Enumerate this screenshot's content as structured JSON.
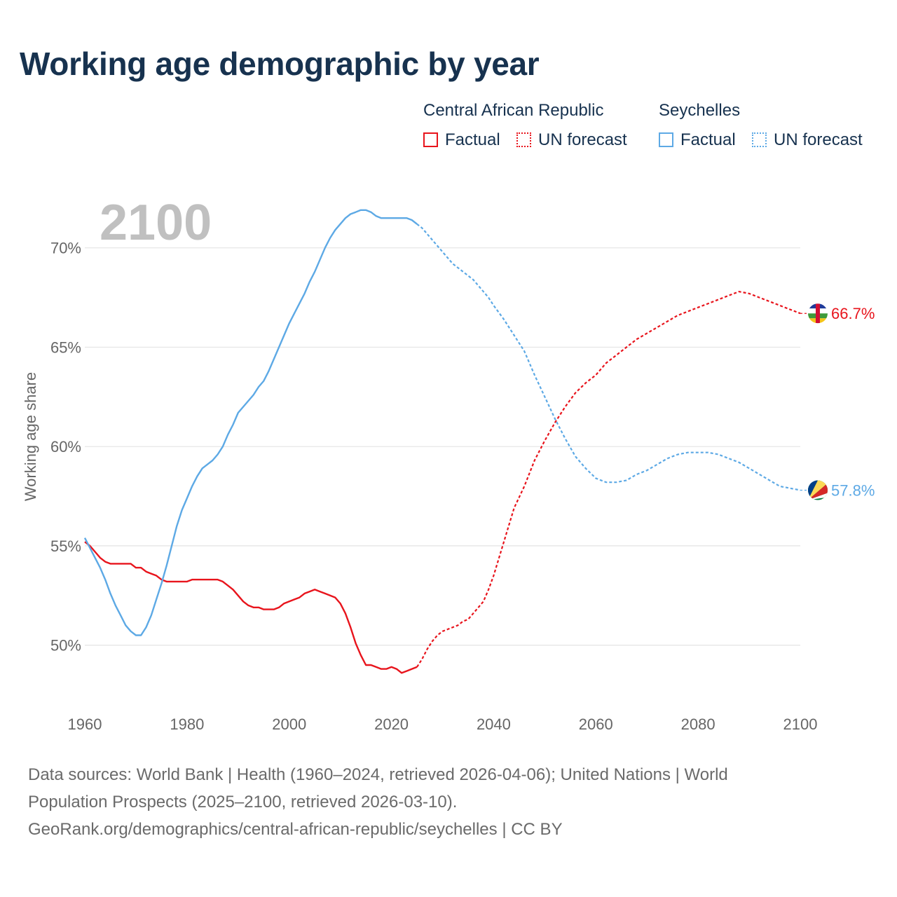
{
  "title": "Working age demographic by year",
  "legend": {
    "groups": [
      {
        "name": "Central African Republic",
        "factual": "Factual",
        "forecast": "UN forecast",
        "color": "#e8141c"
      },
      {
        "name": "Seychelles",
        "factual": "Factual",
        "forecast": "UN forecast",
        "color": "#5da9e5"
      }
    ]
  },
  "chart_data": {
    "type": "line",
    "title": "Working age demographic by year",
    "xlabel": "",
    "ylabel": "Working age share",
    "xlim": [
      1960,
      2100
    ],
    "ylim": [
      47.2,
      72.6
    ],
    "x_ticks": [
      1960,
      1980,
      2000,
      2020,
      2040,
      2060,
      2080,
      2100
    ],
    "y_ticks": [
      50,
      55,
      60,
      65,
      70
    ],
    "y_tick_labels": [
      "50%",
      "55%",
      "60%",
      "65%",
      "70%"
    ],
    "current_year": "2100",
    "forecast_start": 2025,
    "series": [
      {
        "name": "Central African Republic",
        "color": "#e8141c",
        "end_label": "66.7%",
        "flag": "central-african-republic-flag-icon",
        "x": [
          1960,
          1961,
          1962,
          1963,
          1964,
          1965,
          1966,
          1967,
          1968,
          1969,
          1970,
          1971,
          1972,
          1973,
          1974,
          1975,
          1976,
          1977,
          1978,
          1979,
          1980,
          1981,
          1982,
          1983,
          1984,
          1985,
          1986,
          1987,
          1988,
          1989,
          1990,
          1991,
          1992,
          1993,
          1994,
          1995,
          1996,
          1997,
          1998,
          1999,
          2000,
          2001,
          2002,
          2003,
          2004,
          2005,
          2006,
          2007,
          2008,
          2009,
          2010,
          2011,
          2012,
          2013,
          2014,
          2015,
          2016,
          2017,
          2018,
          2019,
          2020,
          2021,
          2022,
          2023,
          2024,
          2025,
          2026,
          2027,
          2028,
          2029,
          2030,
          2031,
          2032,
          2033,
          2034,
          2035,
          2036,
          2037,
          2038,
          2039,
          2040,
          2042,
          2044,
          2046,
          2048,
          2050,
          2052,
          2054,
          2056,
          2058,
          2060,
          2062,
          2064,
          2066,
          2068,
          2070,
          2072,
          2074,
          2076,
          2078,
          2080,
          2082,
          2084,
          2086,
          2088,
          2090,
          2092,
          2094,
          2096,
          2098,
          2100
        ],
        "y": [
          55.2,
          55.0,
          54.7,
          54.4,
          54.2,
          54.1,
          54.1,
          54.1,
          54.1,
          54.1,
          53.9,
          53.9,
          53.7,
          53.6,
          53.5,
          53.3,
          53.2,
          53.2,
          53.2,
          53.2,
          53.2,
          53.3,
          53.3,
          53.3,
          53.3,
          53.3,
          53.3,
          53.2,
          53.0,
          52.8,
          52.5,
          52.2,
          52.0,
          51.9,
          51.9,
          51.8,
          51.8,
          51.8,
          51.9,
          52.1,
          52.2,
          52.3,
          52.4,
          52.6,
          52.7,
          52.8,
          52.7,
          52.6,
          52.5,
          52.4,
          52.1,
          51.6,
          50.9,
          50.1,
          49.5,
          49.0,
          49.0,
          48.9,
          48.8,
          48.8,
          48.9,
          48.8,
          48.6,
          48.7,
          48.8,
          48.9,
          49.3,
          49.8,
          50.2,
          50.5,
          50.7,
          50.8,
          50.9,
          51.0,
          51.2,
          51.3,
          51.6,
          51.9,
          52.2,
          52.8,
          53.5,
          55.2,
          56.9,
          58.0,
          59.3,
          60.3,
          61.2,
          62.0,
          62.7,
          63.2,
          63.6,
          64.2,
          64.6,
          65.0,
          65.4,
          65.7,
          66.0,
          66.3,
          66.6,
          66.8,
          67.0,
          67.2,
          67.4,
          67.6,
          67.8,
          67.7,
          67.5,
          67.3,
          67.1,
          66.9,
          66.7
        ]
      },
      {
        "name": "Seychelles",
        "color": "#5da9e5",
        "end_label": "57.8%",
        "flag": "seychelles-flag-icon",
        "x": [
          1960,
          1961,
          1962,
          1963,
          1964,
          1965,
          1966,
          1967,
          1968,
          1969,
          1970,
          1971,
          1972,
          1973,
          1974,
          1975,
          1976,
          1977,
          1978,
          1979,
          1980,
          1981,
          1982,
          1983,
          1984,
          1985,
          1986,
          1987,
          1988,
          1989,
          1990,
          1991,
          1992,
          1993,
          1994,
          1995,
          1996,
          1997,
          1998,
          1999,
          2000,
          2001,
          2002,
          2003,
          2004,
          2005,
          2006,
          2007,
          2008,
          2009,
          2010,
          2011,
          2012,
          2013,
          2014,
          2015,
          2016,
          2017,
          2018,
          2019,
          2020,
          2021,
          2022,
          2023,
          2024,
          2025,
          2026,
          2027,
          2028,
          2029,
          2030,
          2031,
          2032,
          2033,
          2034,
          2035,
          2036,
          2037,
          2038,
          2039,
          2040,
          2042,
          2044,
          2046,
          2048,
          2050,
          2052,
          2054,
          2056,
          2058,
          2060,
          2062,
          2064,
          2066,
          2068,
          2070,
          2072,
          2074,
          2076,
          2078,
          2080,
          2082,
          2084,
          2086,
          2088,
          2090,
          2092,
          2094,
          2096,
          2098,
          2100
        ],
        "y": [
          55.4,
          54.9,
          54.4,
          53.9,
          53.3,
          52.6,
          52.0,
          51.5,
          51.0,
          50.7,
          50.5,
          50.5,
          50.9,
          51.5,
          52.3,
          53.1,
          54.0,
          55.0,
          56.0,
          56.8,
          57.4,
          58.0,
          58.5,
          58.9,
          59.1,
          59.3,
          59.6,
          60.0,
          60.6,
          61.1,
          61.7,
          62.0,
          62.3,
          62.6,
          63.0,
          63.3,
          63.8,
          64.4,
          65.0,
          65.6,
          66.2,
          66.7,
          67.2,
          67.7,
          68.3,
          68.8,
          69.4,
          70.0,
          70.5,
          70.9,
          71.2,
          71.5,
          71.7,
          71.8,
          71.9,
          71.9,
          71.8,
          71.6,
          71.5,
          71.5,
          71.5,
          71.5,
          71.5,
          71.5,
          71.4,
          71.2,
          71.0,
          70.7,
          70.4,
          70.1,
          69.8,
          69.5,
          69.2,
          69.0,
          68.8,
          68.6,
          68.4,
          68.1,
          67.8,
          67.5,
          67.1,
          66.4,
          65.6,
          64.8,
          63.6,
          62.5,
          61.4,
          60.4,
          59.5,
          58.9,
          58.4,
          58.2,
          58.2,
          58.3,
          58.6,
          58.8,
          59.1,
          59.4,
          59.6,
          59.7,
          59.7,
          59.7,
          59.6,
          59.4,
          59.2,
          58.9,
          58.6,
          58.3,
          58.0,
          57.9,
          57.8
        ]
      }
    ]
  },
  "source": {
    "line1": "Data sources: World Bank | Health (1960–2024, retrieved 2026-04-06); United Nations | World",
    "line2": "Population Prospects (2025–2100, retrieved 2026-03-10).",
    "line3": "GeoRank.org/demographics/central-african-republic/seychelles | CC BY"
  }
}
